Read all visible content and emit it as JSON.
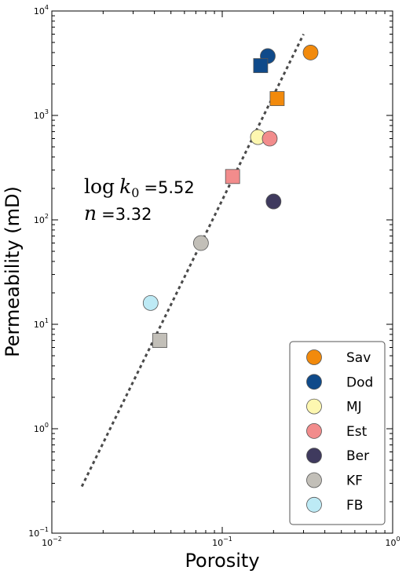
{
  "chart_data": {
    "type": "scatter",
    "xlabel": "Porosity",
    "ylabel": "Permeability (mD)",
    "xscale": "log",
    "yscale": "log",
    "xlim": [
      0.01,
      1
    ],
    "ylim": [
      0.1,
      10000
    ],
    "x_ticks": [
      {
        "value": 0.01,
        "base": "10",
        "exp": "−2"
      },
      {
        "value": 0.1,
        "base": "10",
        "exp": "−1"
      },
      {
        "value": 1,
        "base": "10",
        "exp": "0"
      }
    ],
    "y_ticks": [
      {
        "value": 0.1,
        "base": "10",
        "exp": "−1"
      },
      {
        "value": 1,
        "base": "10",
        "exp": "0"
      },
      {
        "value": 10,
        "base": "10",
        "exp": "1"
      },
      {
        "value": 100,
        "base": "10",
        "exp": "2"
      },
      {
        "value": 1000,
        "base": "10",
        "exp": "3"
      },
      {
        "value": 10000,
        "base": "10",
        "exp": "4"
      }
    ],
    "grid": false,
    "legend_position": "lower-right",
    "series": [
      {
        "name": "Sav",
        "color": "#f28a0c",
        "points": [
          {
            "x": 0.33,
            "y": 4000,
            "marker": "circle"
          },
          {
            "x": 0.21,
            "y": 1450,
            "marker": "square"
          }
        ]
      },
      {
        "name": "Dod",
        "color": "#0f4a8a",
        "points": [
          {
            "x": 0.185,
            "y": 3700,
            "marker": "circle"
          },
          {
            "x": 0.168,
            "y": 3000,
            "marker": "square"
          }
        ]
      },
      {
        "name": "MJ",
        "color": "#fdf7b0",
        "points": [
          {
            "x": 0.162,
            "y": 620,
            "marker": "circle"
          }
        ]
      },
      {
        "name": "Est",
        "color": "#f28c8c",
        "points": [
          {
            "x": 0.19,
            "y": 600,
            "marker": "circle"
          },
          {
            "x": 0.115,
            "y": 260,
            "marker": "square"
          }
        ]
      },
      {
        "name": "Ber",
        "color": "#3f3a5e",
        "points": [
          {
            "x": 0.2,
            "y": 150,
            "marker": "circle"
          }
        ]
      },
      {
        "name": "KF",
        "color": "#c2bfb8",
        "points": [
          {
            "x": 0.075,
            "y": 60,
            "marker": "circle"
          },
          {
            "x": 0.043,
            "y": 7,
            "marker": "square"
          }
        ]
      },
      {
        "name": "FB",
        "color": "#bdeaf5",
        "points": [
          {
            "x": 0.038,
            "y": 16,
            "marker": "circle"
          }
        ]
      }
    ],
    "fit_line": {
      "style": "dotted",
      "color": "#4a4a4a",
      "x": [
        0.015,
        0.3
      ],
      "y": [
        0.28,
        6000
      ]
    },
    "annotation": {
      "line1_prefix": "log",
      "line1_var": "k",
      "line1_sub": "0",
      "line1_value": "=5.52",
      "line2_var": "n",
      "line2_value": "=3.32"
    }
  }
}
